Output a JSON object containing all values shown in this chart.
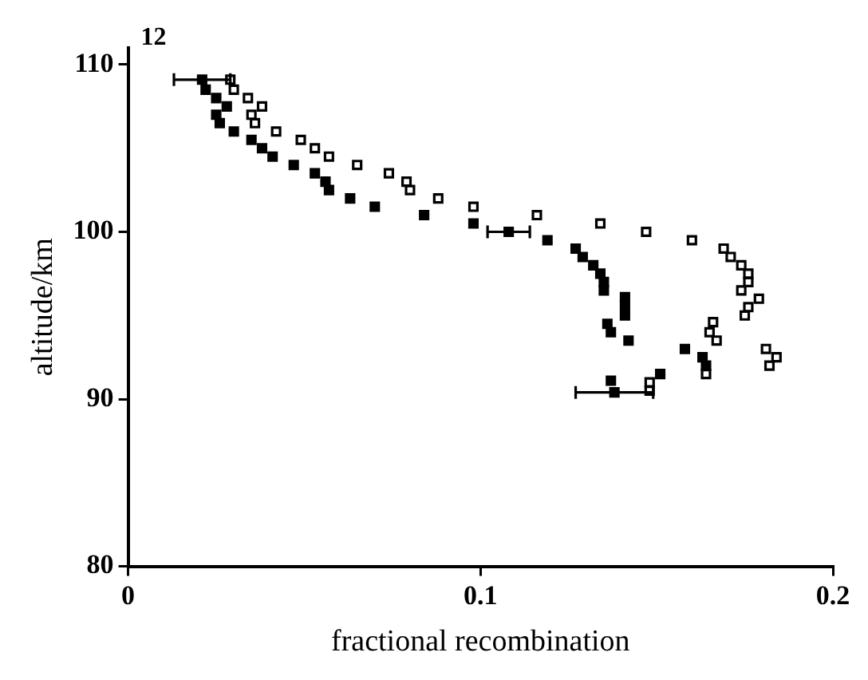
{
  "chart_data": {
    "type": "scatter",
    "xlabel": "fractional recombination",
    "ylabel": "altitude/km",
    "annotations": [
      "12"
    ],
    "xlim": [
      0,
      0.2
    ],
    "xticks": [
      0,
      0.1,
      0.2
    ],
    "ylim": [
      80,
      111
    ],
    "yticks": [
      80,
      90,
      100,
      110
    ],
    "grid": false,
    "legend": false,
    "marker": "square",
    "series": [
      {
        "color": "#000000",
        "x": [
          0.021,
          0.022,
          0.025,
          0.028,
          0.025,
          0.026,
          0.03,
          0.035,
          0.038,
          0.041,
          0.047,
          0.053,
          0.056,
          0.057,
          0.063,
          0.07,
          0.084,
          0.098,
          0.108,
          0.119,
          0.127,
          0.129,
          0.132,
          0.134,
          0.135,
          0.135,
          0.141,
          0.141,
          0.141,
          0.136,
          0.137,
          0.142,
          0.158,
          0.163,
          0.164,
          0.151,
          0.137,
          0.138
        ],
        "values": [
          109.1,
          108.5,
          108.0,
          107.5,
          107.0,
          106.5,
          106.0,
          105.5,
          105.0,
          104.5,
          104.0,
          103.5,
          103.0,
          102.5,
          102.0,
          101.5,
          101.0,
          100.5,
          100.0,
          99.5,
          99.0,
          98.5,
          98.0,
          97.5,
          97.0,
          96.5,
          96.1,
          95.6,
          95.0,
          94.5,
          94.0,
          93.5,
          93.0,
          92.5,
          92.0,
          91.5,
          91.1,
          90.4
        ],
        "xerrors": [
          0.008,
          null,
          null,
          null,
          null,
          null,
          null,
          null,
          null,
          null,
          null,
          null,
          null,
          null,
          null,
          null,
          null,
          null,
          0.006,
          null,
          null,
          null,
          null,
          null,
          null,
          null,
          null,
          null,
          null,
          null,
          null,
          null,
          null,
          null,
          null,
          null,
          null,
          0.011
        ]
      },
      {
        "color": "#000000",
        "x": [
          0.029,
          0.03,
          0.034,
          0.038,
          0.035,
          0.036,
          0.042,
          0.049,
          0.053,
          0.057,
          0.065,
          0.074,
          0.079,
          0.08,
          0.088,
          0.098,
          0.116,
          0.134,
          0.147,
          0.16,
          0.169,
          0.171,
          0.174,
          0.176,
          0.176,
          0.174,
          0.179,
          0.176,
          0.175,
          0.166,
          0.165,
          0.167,
          0.181,
          0.184,
          0.182,
          0.164,
          0.148,
          0.148
        ],
        "values": [
          109.1,
          108.5,
          108.0,
          107.5,
          107.0,
          106.5,
          106.0,
          105.5,
          105.0,
          104.5,
          104.0,
          103.5,
          103.0,
          102.5,
          102.0,
          101.5,
          101.0,
          100.5,
          100.0,
          99.5,
          99.0,
          98.5,
          98.0,
          97.5,
          97.0,
          96.5,
          96.0,
          95.5,
          95.0,
          94.6,
          94.0,
          93.5,
          93.0,
          92.5,
          92.0,
          91.5,
          91.0,
          90.5
        ]
      }
    ]
  }
}
